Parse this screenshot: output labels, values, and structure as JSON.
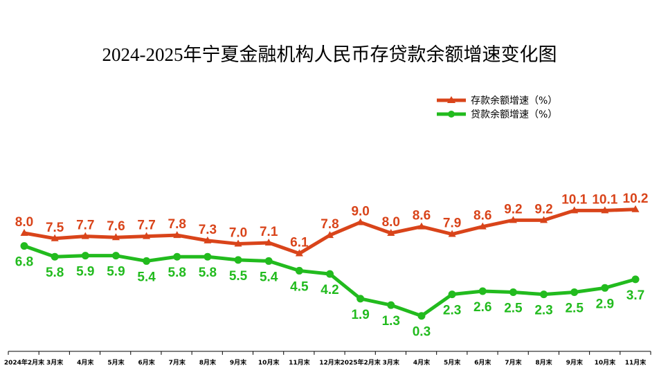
{
  "chart_data": {
    "type": "line",
    "title": "2024-2025年宁夏金融机构人民币存贷款余额增速变化图",
    "xlabel": "",
    "ylabel": "",
    "categories": [
      "2024年2月末",
      "3月末",
      "4月末",
      "5月末",
      "6月末",
      "7月末",
      "8月末",
      "9月末",
      "10月末",
      "11月末",
      "12月末",
      "2025年2月末",
      "3月末",
      "4月末",
      "5月末",
      "6月末",
      "7月末",
      "8月末",
      "9月末",
      "10月末",
      "11月末"
    ],
    "series": [
      {
        "name": "存款余额增速（%）",
        "color": "#d9441a",
        "marker": "triangle",
        "values": [
          8.0,
          7.5,
          7.7,
          7.6,
          7.7,
          7.8,
          7.3,
          7.0,
          7.1,
          6.1,
          7.8,
          9.0,
          8.0,
          8.6,
          7.9,
          8.6,
          9.2,
          9.2,
          10.1,
          10.1,
          10.2
        ],
        "labels": [
          "8.0",
          "7.5",
          "7.7",
          "7.6",
          "7.7",
          "7.8",
          "7.3",
          "7.0",
          "7.1",
          "6.1",
          "7.8",
          "9.0",
          "8.0",
          "8.6",
          "7.9",
          "8.6",
          "9.2",
          "9.2",
          "10.1",
          "10.1",
          "10.2"
        ]
      },
      {
        "name": "贷款余额增速（%）",
        "color": "#22bb1e",
        "marker": "circle",
        "values": [
          6.8,
          5.8,
          5.9,
          5.9,
          5.4,
          5.8,
          5.8,
          5.5,
          5.4,
          4.5,
          4.2,
          1.9,
          1.3,
          0.3,
          2.3,
          2.6,
          2.5,
          2.3,
          2.5,
          2.9,
          3.7
        ],
        "labels": [
          "6.8",
          "5.8",
          "5.9",
          "5.9",
          "5.4",
          "5.8",
          "5.8",
          "5.5",
          "5.4",
          "4.5",
          "4.2",
          "1.9",
          "1.3",
          "0.3",
          "2.3",
          "2.6",
          "2.5",
          "2.3",
          "2.5",
          "2.9",
          "3.7"
        ]
      }
    ],
    "legend_position": "top-right",
    "grid": false
  }
}
